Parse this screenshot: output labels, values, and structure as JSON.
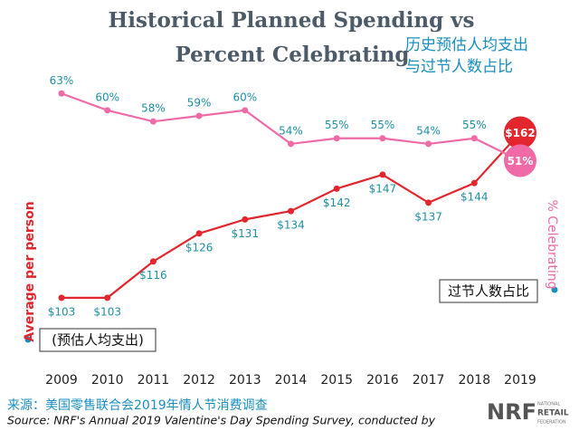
{
  "chart_data": {
    "type": "line",
    "title": [
      "Historical Planned Spending vs",
      "Percent Celebrating"
    ],
    "annotations": [
      "历史预估人均支出",
      "与过节人数占比",
      "过节人数占比",
      "(预估人均支出)"
    ],
    "ylabel": "Average per person",
    "y2label": "% Celebrating",
    "categories": [
      "2009",
      "2010",
      "2011",
      "2012",
      "2013",
      "2014",
      "2015",
      "2016",
      "2017",
      "2018",
      "2019"
    ],
    "series": [
      {
        "color": "#e3262d",
        "values": [
          103,
          103,
          116,
          126,
          131,
          134,
          142,
          147,
          137,
          144,
          162
        ],
        "value_labels": [
          "$103",
          "$103",
          "$116",
          "$126",
          "$131",
          "$134",
          "$142",
          "$147",
          "$137",
          "$144",
          "$162"
        ]
      },
      {
        "color": "#f06aa8",
        "axis": "y2",
        "values": [
          63,
          60,
          58,
          59,
          60,
          54,
          55,
          55,
          54,
          55,
          51
        ],
        "value_labels": [
          "63%",
          "60%",
          "58%",
          "59%",
          "60%",
          "54%",
          "55%",
          "55%",
          "54%",
          "55%",
          "51%"
        ]
      }
    ],
    "ylim": [
      80,
      190
    ],
    "y2lim": [
      15,
      70
    ],
    "source": [
      "来源：美国零售联合会2019年情人节消费调查",
      "Source: NRF's Annual 2019 Valentine's Day Spending Survey, conducted by"
    ],
    "logo": {
      "text": "NRF",
      "subtext": [
        "NATIONAL",
        "RETAIL",
        "FEDERATION"
      ]
    }
  }
}
